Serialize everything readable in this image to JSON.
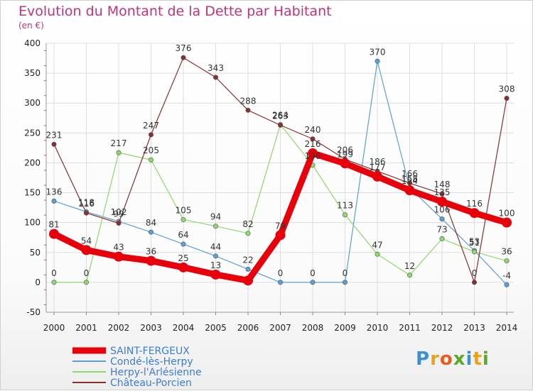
{
  "header": {
    "title": "Evolution du Montant de la Dette par Habitant",
    "subtitle": "(en €)"
  },
  "logo": {
    "letters": [
      "P",
      "r",
      "o",
      "x",
      "i",
      "t",
      "i"
    ],
    "colors": [
      "#3c8fd1",
      "#e8a21d",
      "#e85d1d",
      "#5aaa2a",
      "#3c8fd1",
      "#e8a21d",
      "#5aaa2a"
    ]
  },
  "chart_data": {
    "type": "line",
    "title": "Evolution du Montant de la Dette par Habitant",
    "ylabel": "(en €)",
    "x": [
      "2000",
      "2001",
      "2002",
      "2003",
      "2004",
      "2005",
      "2006",
      "2007",
      "2008",
      "2009",
      "2010",
      "2011",
      "2012",
      "2013",
      "2014"
    ],
    "ylim": [
      -50,
      400
    ],
    "yticks": [
      -50,
      0,
      50,
      100,
      150,
      200,
      250,
      300,
      350,
      400
    ],
    "grid": true,
    "legend_position": "bottom-left",
    "series": [
      {
        "name": "SAINT-FERGEUX",
        "color": "#e8000b",
        "width": 9,
        "marker": 7,
        "values": [
          81,
          54,
          43,
          36,
          25,
          13,
          3,
          79,
          216,
          199,
          177,
          154,
          135,
          116,
          100
        ],
        "labels": [
          "81",
          "54",
          "43",
          "36",
          "25",
          "13",
          "",
          "79",
          "216",
          "199",
          "177",
          "154",
          "135",
          "116",
          "100"
        ]
      },
      {
        "name": "Condé-lès-Herpy",
        "color": "#5b9fd6",
        "width": 1.2,
        "marker": 3.2,
        "values": [
          136,
          118,
          102,
          84,
          64,
          44,
          22,
          0,
          0,
          0,
          370,
          158,
          106,
          53,
          -4
        ],
        "labels": [
          "136",
          "118",
          "102",
          "84",
          "64",
          "44",
          "22",
          "0",
          "0",
          "0",
          "370",
          "158",
          "106",
          "53",
          "-4"
        ]
      },
      {
        "name": "Herpy-l'Arlésienne",
        "color": "#8ed96b",
        "width": 1.2,
        "marker": 3.2,
        "values": [
          0,
          0,
          217,
          205,
          105,
          94,
          82,
          264,
          196,
          113,
          47,
          12,
          73,
          51,
          36
        ],
        "labels": [
          "0",
          "0",
          "217",
          "205",
          "105",
          "94",
          "82",
          "264",
          "196",
          "113",
          "47",
          "12",
          "73",
          "51",
          "36"
        ]
      },
      {
        "name": "Château-Porcien",
        "color": "#8a2e2e",
        "width": 1.2,
        "marker": 3.2,
        "values": [
          231,
          116,
          99,
          247,
          376,
          343,
          288,
          263,
          240,
          206,
          186,
          166,
          148,
          0,
          308
        ],
        "labels": [
          "231",
          "116",
          "99",
          "247",
          "376",
          "343",
          "288",
          "263",
          "240",
          "206",
          "186",
          "166",
          "148",
          "0",
          "308"
        ]
      }
    ]
  }
}
